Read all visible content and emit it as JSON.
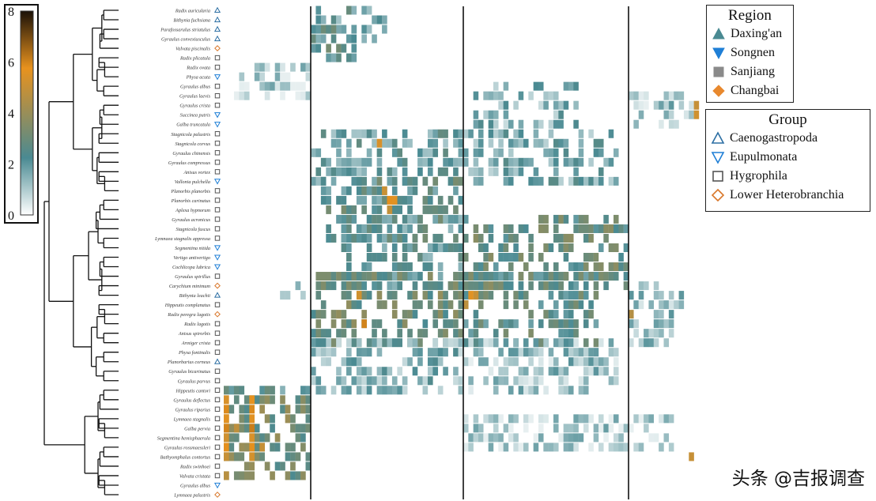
{
  "chart_data": {
    "type": "heatmap",
    "title": "",
    "colorbar": {
      "ticks": [
        "8",
        "6",
        "4",
        "2",
        "0"
      ],
      "min": 0,
      "max": 8,
      "colors": [
        "#ffffff",
        "#4a8a92",
        "#e8921e",
        "#1a1108"
      ]
    },
    "rows": [
      {
        "label": "Radix auricularia",
        "group": "Caenogastropoda"
      },
      {
        "label": "Bithynia fuchsiana",
        "group": "Caenogastropoda"
      },
      {
        "label": "Parafossarulus striatulus",
        "group": "Caenogastropoda"
      },
      {
        "label": "Gyraulus convexiusculus",
        "group": "Caenogastropoda"
      },
      {
        "label": "Valvata piscinalis",
        "group": "Lower Heterobranchia"
      },
      {
        "label": "Radix plicatula",
        "group": "Hygrophila"
      },
      {
        "label": "Radix ovata",
        "group": "Hygrophila"
      },
      {
        "label": "Physa acuta",
        "group": "Eupulmonata"
      },
      {
        "label": "Gyraulus albus",
        "group": "Hygrophila"
      },
      {
        "label": "Gyraulus laevis",
        "group": "Hygrophila"
      },
      {
        "label": "Gyraulus crista",
        "group": "Hygrophila"
      },
      {
        "label": "Succinea putris",
        "group": "Eupulmonata"
      },
      {
        "label": "Galba truncatula",
        "group": "Eupulmonata"
      },
      {
        "label": "Stagnicola palustris",
        "group": "Hygrophila"
      },
      {
        "label": "Stagnicola corvus",
        "group": "Hygrophila"
      },
      {
        "label": "Gyraulus chinensis",
        "group": "Hygrophila"
      },
      {
        "label": "Gyraulus compressus",
        "group": "Hygrophila"
      },
      {
        "label": "Anisus vortex",
        "group": "Hygrophila"
      },
      {
        "label": "Vallonia pulchella",
        "group": "Eupulmonata"
      },
      {
        "label": "Planorbis planorbis",
        "group": "Hygrophila"
      },
      {
        "label": "Planorbis carinatus",
        "group": "Hygrophila"
      },
      {
        "label": "Aplexa hypnorum",
        "group": "Hygrophila"
      },
      {
        "label": "Gyraulus acronicus",
        "group": "Hygrophila"
      },
      {
        "label": "Stagnicola fuscus",
        "group": "Hygrophila"
      },
      {
        "label": "Lymnaea stagnalis appressa",
        "group": "Hygrophila"
      },
      {
        "label": "Segmentina nitida",
        "group": "Eupulmonata"
      },
      {
        "label": "Vertigo antivertigo",
        "group": "Eupulmonata"
      },
      {
        "label": "Cochlicopa lubrica",
        "group": "Eupulmonata"
      },
      {
        "label": "Gyraulus spirillus",
        "group": "Hygrophila"
      },
      {
        "label": "Carychium minimum",
        "group": "Lower Heterobranchia"
      },
      {
        "label": "Bithynia leachii",
        "group": "Caenogastropoda"
      },
      {
        "label": "Hippeutis complanatus",
        "group": "Hygrophila"
      },
      {
        "label": "Radix peregra lagotis",
        "group": "Lower Heterobranchia"
      },
      {
        "label": "Radix lagotis",
        "group": "Hygrophila"
      },
      {
        "label": "Anisus spirorbis",
        "group": "Hygrophila"
      },
      {
        "label": "Armiger crista",
        "group": "Hygrophila"
      },
      {
        "label": "Physa fontinalis",
        "group": "Hygrophila"
      },
      {
        "label": "Planorbarius corneus",
        "group": "Caenogastropoda"
      },
      {
        "label": "Gyraulus bicarinatus",
        "group": "Hygrophila"
      },
      {
        "label": "Gyraulus parvus",
        "group": "Hygrophila"
      },
      {
        "label": "Hippeutis cantori",
        "group": "Hygrophila"
      },
      {
        "label": "Gyraulus deflectus",
        "group": "Hygrophila"
      },
      {
        "label": "Gyraulus riparius",
        "group": "Hygrophila"
      },
      {
        "label": "Lymnaea stagnalis",
        "group": "Hygrophila"
      },
      {
        "label": "Galba pervia",
        "group": "Hygrophila"
      },
      {
        "label": "Segmentina hemisphaerula",
        "group": "Hygrophila"
      },
      {
        "label": "Gyraulus rossmaessleri",
        "group": "Hygrophila"
      },
      {
        "label": "Bathyomphalus contortus",
        "group": "Hygrophila"
      },
      {
        "label": "Radix swinhoei",
        "group": "Hygrophila"
      },
      {
        "label": "Valvata cristata",
        "group": "Hygrophila"
      },
      {
        "label": "Gyraulus albus",
        "group": "Eupulmonata"
      },
      {
        "label": "Lymnaea palustris",
        "group": "Lower Heterobranchia"
      }
    ],
    "sample_groups": [
      "Daxing'an",
      "Songnen",
      "Sanjiang",
      "Changbai"
    ],
    "columns_per_panel": [
      17,
      30,
      33,
      14
    ],
    "blocks": [
      {
        "rows": [
          0,
          3
        ],
        "panel": 1,
        "cols": [
          0,
          14
        ],
        "level": 2.0
      },
      {
        "rows": [
          2,
          5
        ],
        "panel": 1,
        "cols": [
          0,
          8
        ],
        "level": 2.4
      },
      {
        "rows": [
          6,
          9
        ],
        "panel": 0,
        "cols": [
          2,
          16
        ],
        "level": 0.9
      },
      {
        "rows": [
          8,
          12
        ],
        "panel": 2,
        "cols": [
          2,
          22
        ],
        "level": 1.5
      },
      {
        "rows": [
          9,
          12
        ],
        "panel": 3,
        "cols": [
          0,
          12
        ],
        "level": 1.1
      },
      {
        "rows": [
          13,
          18
        ],
        "panel": 1,
        "cols": [
          0,
          29
        ],
        "level": 2.0
      },
      {
        "rows": [
          13,
          18
        ],
        "panel": 2,
        "cols": [
          0,
          30
        ],
        "level": 1.7
      },
      {
        "rows": [
          18,
          24
        ],
        "panel": 1,
        "cols": [
          2,
          29
        ],
        "level": 2.4
      },
      {
        "rows": [
          22,
          29
        ],
        "panel": 2,
        "cols": [
          0,
          32
        ],
        "level": 2.8
      },
      {
        "rows": [
          22,
          29
        ],
        "panel": 1,
        "cols": [
          6,
          29
        ],
        "level": 2.2
      },
      {
        "rows": [
          28,
          35
        ],
        "panel": 1,
        "cols": [
          0,
          29
        ],
        "level": 3.0
      },
      {
        "rows": [
          28,
          35
        ],
        "panel": 2,
        "cols": [
          0,
          26
        ],
        "level": 2.6
      },
      {
        "rows": [
          29,
          30
        ],
        "panel": 0,
        "cols": [
          10,
          16
        ],
        "level": 1.8
      },
      {
        "rows": [
          29,
          35
        ],
        "panel": 3,
        "cols": [
          0,
          10
        ],
        "level": 1.4
      },
      {
        "rows": [
          35,
          39
        ],
        "panel": 1,
        "cols": [
          0,
          29
        ],
        "level": 1.5
      },
      {
        "rows": [
          35,
          39
        ],
        "panel": 2,
        "cols": [
          0,
          30
        ],
        "level": 1.2
      },
      {
        "rows": [
          40,
          40
        ],
        "panel": 0,
        "cols": [
          0,
          16
        ],
        "level": 2.1
      },
      {
        "rows": [
          40,
          40
        ],
        "panel": 1,
        "cols": [
          0,
          29
        ],
        "level": 1.5
      },
      {
        "rows": [
          40,
          40
        ],
        "panel": 2,
        "cols": [
          0,
          26
        ],
        "level": 1.3
      },
      {
        "rows": [
          41,
          49
        ],
        "panel": 0,
        "cols": [
          0,
          16
        ],
        "level": 3.2
      },
      {
        "rows": [
          43,
          46
        ],
        "panel": 2,
        "cols": [
          0,
          33
        ],
        "level": 1.0
      },
      {
        "rows": [
          43,
          46
        ],
        "panel": 3,
        "cols": [
          0,
          8
        ],
        "level": 0.9
      }
    ],
    "hotspots": [
      {
        "row": 14,
        "panel": 1,
        "col": 13,
        "value": 5.4
      },
      {
        "row": 19,
        "panel": 1,
        "col": 14,
        "value": 5.1
      },
      {
        "row": 20,
        "panel": 1,
        "col": 15,
        "value": 5.8
      },
      {
        "row": 20,
        "panel": 1,
        "col": 16,
        "value": 5.6
      },
      {
        "row": 21,
        "panel": 1,
        "col": 15,
        "value": 4.9
      },
      {
        "row": 30,
        "panel": 1,
        "col": 9,
        "value": 5.2
      },
      {
        "row": 30,
        "panel": 2,
        "col": 1,
        "value": 5.6
      },
      {
        "row": 30,
        "panel": 2,
        "col": 2,
        "value": 5.0
      },
      {
        "row": 31,
        "panel": 2,
        "col": 0,
        "value": 4.8
      },
      {
        "row": 33,
        "panel": 1,
        "col": 10,
        "value": 6.0
      },
      {
        "row": 32,
        "panel": 3,
        "col": 0,
        "value": 4.6
      },
      {
        "row": 41,
        "panel": 0,
        "col": 0,
        "value": 5.4
      },
      {
        "row": 42,
        "panel": 0,
        "col": 0,
        "value": 5.9
      },
      {
        "row": 43,
        "panel": 0,
        "col": 0,
        "value": 5.6
      },
      {
        "row": 44,
        "panel": 0,
        "col": 0,
        "value": 6.0
      },
      {
        "row": 45,
        "panel": 0,
        "col": 0,
        "value": 5.2
      },
      {
        "row": 46,
        "panel": 0,
        "col": 0,
        "value": 5.8
      },
      {
        "row": 47,
        "panel": 0,
        "col": 0,
        "value": 5.0
      },
      {
        "row": 41,
        "panel": 0,
        "col": 5,
        "value": 5.7
      },
      {
        "row": 42,
        "panel": 0,
        "col": 5,
        "value": 5.9
      },
      {
        "row": 43,
        "panel": 0,
        "col": 5,
        "value": 5.6
      },
      {
        "row": 44,
        "panel": 0,
        "col": 5,
        "value": 6.1
      },
      {
        "row": 45,
        "panel": 0,
        "col": 5,
        "value": 5.4
      },
      {
        "row": 46,
        "panel": 0,
        "col": 5,
        "value": 5.8
      },
      {
        "row": 47,
        "panel": 0,
        "col": 5,
        "value": 5.3
      },
      {
        "row": 46,
        "panel": 0,
        "col": 7,
        "value": 5.0
      },
      {
        "row": 44,
        "panel": 0,
        "col": 2,
        "value": 4.8
      },
      {
        "row": 49,
        "panel": 0,
        "col": 0,
        "value": 4.7
      },
      {
        "row": 11,
        "panel": 3,
        "col": 13,
        "value": 5.2
      },
      {
        "row": 10,
        "panel": 3,
        "col": 13,
        "value": 5.0
      },
      {
        "row": 47,
        "panel": 3,
        "col": 12,
        "value": 5.0
      }
    ]
  },
  "legends": {
    "region": {
      "title": "Region",
      "items": [
        {
          "label": "Daxing'an",
          "shape": "triangle-up",
          "color": "#4a8a92"
        },
        {
          "label": "Songnen",
          "shape": "triangle-down",
          "color": "#1f7fd6"
        },
        {
          "label": "Sanjiang",
          "shape": "square",
          "color": "#8a8a8a"
        },
        {
          "label": "Changbai",
          "shape": "diamond",
          "color": "#e8892e"
        }
      ]
    },
    "group": {
      "title": "Group",
      "items": [
        {
          "label": "Caenogastropoda",
          "shape": "triangle-up-open",
          "color": "#2b6ea3"
        },
        {
          "label": "Eupulmonata",
          "shape": "triangle-down-open",
          "color": "#1f7fd6"
        },
        {
          "label": "Hygrophila",
          "shape": "square-open",
          "color": "#555555"
        },
        {
          "label": "Lower Heterobranchia",
          "shape": "diamond-open",
          "color": "#d9772a"
        }
      ]
    }
  },
  "watermark": "头条 @吉报调查"
}
